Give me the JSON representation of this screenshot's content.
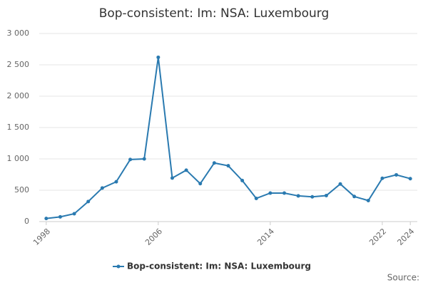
{
  "chart_data": {
    "type": "line",
    "title": "Bop-consistent: Im: NSA: Luxembourg",
    "x": [
      1998,
      1999,
      2000,
      2001,
      2002,
      2003,
      2004,
      2005,
      2006,
      2007,
      2008,
      2009,
      2010,
      2011,
      2012,
      2013,
      2014,
      2015,
      2016,
      2017,
      2018,
      2019,
      2020,
      2021,
      2022,
      2023,
      2024
    ],
    "series": [
      {
        "name": "Bop-consistent: Im: NSA: Luxembourg",
        "color": "#2a7ab0",
        "values": [
          50,
          75,
          125,
          320,
          535,
          635,
          990,
          1000,
          2620,
          695,
          820,
          605,
          935,
          890,
          655,
          370,
          455,
          455,
          410,
          395,
          415,
          600,
          400,
          335,
          690,
          745,
          685
        ]
      }
    ],
    "xlim": [
      1997.5,
      2024.5
    ],
    "xticks": [
      1998,
      2006,
      2014,
      2022,
      2024
    ],
    "ylim": [
      0,
      3000
    ],
    "yticks": [
      0,
      500,
      {
        "value": 1000,
        "label": "1 000"
      },
      {
        "value": 1500,
        "label": "1 500"
      },
      {
        "value": 2000,
        "label": "2 000"
      },
      {
        "value": 2500,
        "label": "2 500"
      },
      {
        "value": 3000,
        "label": "3 000"
      }
    ],
    "grid": true,
    "legend": "bottom",
    "source": "Source:"
  }
}
